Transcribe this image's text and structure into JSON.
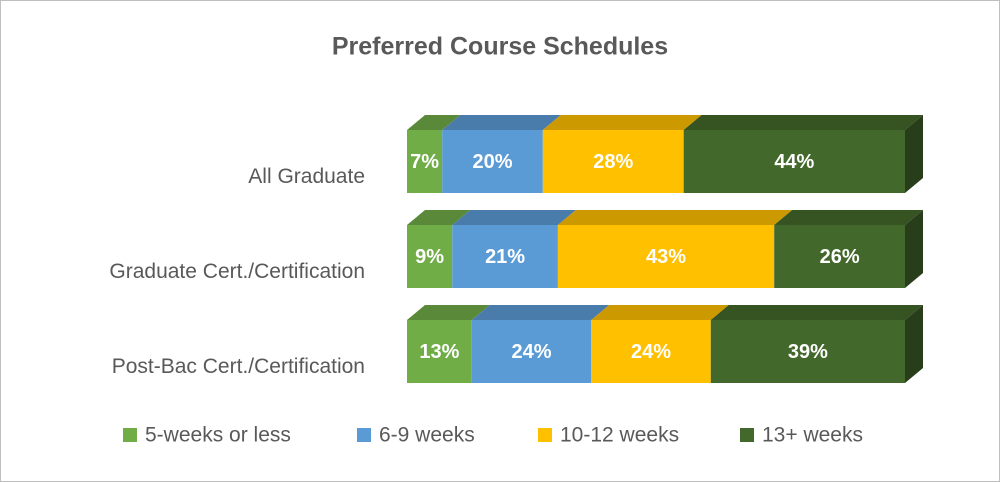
{
  "chart_data": {
    "type": "stacked-bar-3d",
    "title": "Preferred Course Schedules",
    "categories": [
      "All Graduate",
      "Graduate Cert./Certification",
      "Post-Bac Cert./Certification"
    ],
    "series": [
      {
        "name": "5-weeks or less",
        "color": "#70ad47",
        "values": [
          7,
          9,
          13
        ],
        "value_labels": [
          "7%",
          "9%",
          "13%"
        ]
      },
      {
        "name": "6-9 weeks",
        "color": "#5b9bd5",
        "values": [
          20,
          21,
          24
        ],
        "value_labels": [
          "20%",
          "21%",
          "24%"
        ]
      },
      {
        "name": "10-12 weeks",
        "color": "#ffc000",
        "values": [
          28,
          43,
          24
        ],
        "value_labels": [
          "28%",
          "43%",
          "24%"
        ]
      },
      {
        "name": "13+ weeks",
        "color": "#43682b",
        "values": [
          44,
          26,
          39
        ],
        "value_labels": [
          "44%",
          "26%",
          "39%"
        ]
      }
    ],
    "legend": "bottom"
  }
}
